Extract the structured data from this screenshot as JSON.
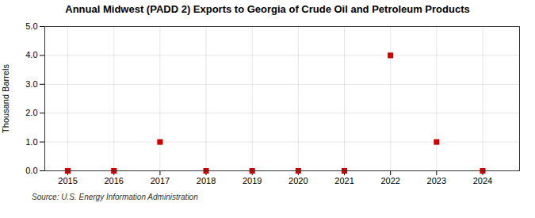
{
  "chart_data": {
    "type": "scatter",
    "title": "Annual Midwest (PADD 2) Exports to Georgia of Crude Oil and Petroleum Products",
    "ylabel": "Thousand Barrels",
    "source": "Source: U.S. Energy Information Administration",
    "x": [
      2015,
      2016,
      2017,
      2018,
      2019,
      2020,
      2021,
      2022,
      2023,
      2024
    ],
    "values": [
      0,
      0,
      1,
      0,
      0,
      0,
      0,
      4,
      1,
      0
    ],
    "color": "#CC0000",
    "marker": "square",
    "xlim": [
      2014.5,
      2024.8
    ],
    "xticks": [
      2015,
      2016,
      2017,
      2018,
      2019,
      2020,
      2021,
      2022,
      2023,
      2024
    ],
    "ylim": [
      0.0,
      5.0
    ],
    "yticks": [
      {
        "value": 0,
        "label": "0.0"
      },
      {
        "value": 1,
        "label": "1.0"
      },
      {
        "value": 2,
        "label": "2.0"
      },
      {
        "value": 3,
        "label": "3.0"
      },
      {
        "value": 4,
        "label": "4.0"
      },
      {
        "value": 5,
        "label": "5.0"
      }
    ],
    "grid": true
  }
}
